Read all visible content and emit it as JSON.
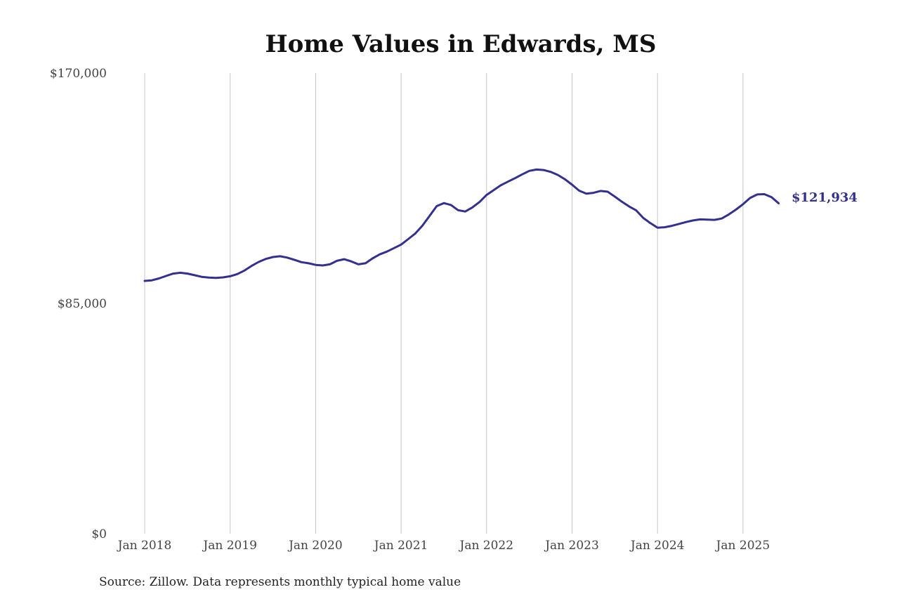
{
  "chart_data": {
    "type": "line",
    "title": "Home Values in Edwards, MS",
    "xlabel": "",
    "ylabel": "",
    "source": "Source: Zillow. Data represents monthly typical home value",
    "ylim": [
      0,
      170000
    ],
    "y_ticks": [
      {
        "value": 0,
        "label": "$0"
      },
      {
        "value": 85000,
        "label": "$85,000"
      },
      {
        "value": 170000,
        "label": "$170,000"
      }
    ],
    "x_ticks": [
      {
        "value": "2018-01",
        "label": "Jan 2018"
      },
      {
        "value": "2019-01",
        "label": "Jan 2019"
      },
      {
        "value": "2020-01",
        "label": "Jan 2020"
      },
      {
        "value": "2021-01",
        "label": "Jan 2021"
      },
      {
        "value": "2022-01",
        "label": "Jan 2022"
      },
      {
        "value": "2023-01",
        "label": "Jan 2023"
      },
      {
        "value": "2024-01",
        "label": "Jan 2024"
      },
      {
        "value": "2025-01",
        "label": "Jan 2025"
      }
    ],
    "grid": {
      "vertical": true,
      "horizontal": false
    },
    "color": "#343090",
    "end_label": "$121,934",
    "series": [
      {
        "x": [
          "2018-01",
          "2018-02",
          "2018-03",
          "2018-04",
          "2018-05",
          "2018-06",
          "2018-07",
          "2018-08",
          "2018-09",
          "2018-10",
          "2018-11",
          "2018-12",
          "2019-01",
          "2019-02",
          "2019-03",
          "2019-04",
          "2019-05",
          "2019-06",
          "2019-07",
          "2019-08",
          "2019-09",
          "2019-10",
          "2019-11",
          "2019-12",
          "2020-01",
          "2020-02",
          "2020-03",
          "2020-04",
          "2020-05",
          "2020-06",
          "2020-07",
          "2020-08",
          "2020-09",
          "2020-10",
          "2020-11",
          "2020-12",
          "2021-01",
          "2021-02",
          "2021-03",
          "2021-04",
          "2021-05",
          "2021-06",
          "2021-07",
          "2021-08",
          "2021-09",
          "2021-10",
          "2021-11",
          "2021-12",
          "2022-01",
          "2022-02",
          "2022-03",
          "2022-04",
          "2022-05",
          "2022-06",
          "2022-07",
          "2022-08",
          "2022-09",
          "2022-10",
          "2022-11",
          "2022-12",
          "2023-01",
          "2023-02",
          "2023-03",
          "2023-04",
          "2023-05",
          "2023-06",
          "2023-07",
          "2023-08",
          "2023-09",
          "2023-10",
          "2023-11",
          "2023-12",
          "2024-01",
          "2024-02",
          "2024-03",
          "2024-04",
          "2024-05",
          "2024-06",
          "2024-07",
          "2024-08",
          "2024-09",
          "2024-10",
          "2024-11",
          "2024-12",
          "2025-01",
          "2025-02",
          "2025-03",
          "2025-04",
          "2025-05",
          "2025-06"
        ],
        "values": [
          93300,
          93500,
          94200,
          95100,
          96000,
          96300,
          96000,
          95400,
          94800,
          94500,
          94400,
          94600,
          95000,
          95800,
          97100,
          98800,
          100300,
          101400,
          102100,
          102400,
          101900,
          101100,
          100200,
          99800,
          99200,
          99000,
          99400,
          100700,
          101300,
          100500,
          99400,
          99800,
          101600,
          103100,
          104100,
          105400,
          106700,
          108700,
          110800,
          113700,
          117300,
          120900,
          122000,
          121300,
          119400,
          118900,
          120400,
          122400,
          125000,
          126800,
          128600,
          129900,
          131200,
          132600,
          133900,
          134400,
          134200,
          133500,
          132400,
          130800,
          128800,
          126600,
          125500,
          125800,
          126500,
          126200,
          124400,
          122500,
          120800,
          119300,
          116500,
          114600,
          112900,
          113100,
          113600,
          114300,
          115000,
          115600,
          116000,
          115900,
          115800,
          116300,
          117800,
          119600,
          121600,
          123900,
          125200,
          125300,
          124200,
          121934
        ]
      }
    ]
  }
}
